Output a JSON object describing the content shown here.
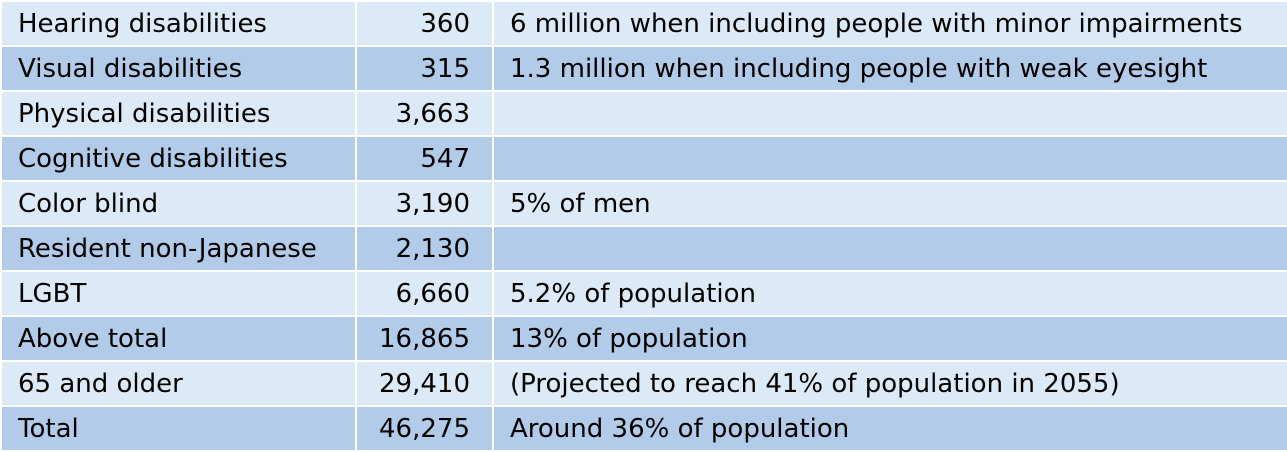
{
  "table": {
    "rows": [
      {
        "label": "Hearing disabilities",
        "value": "360",
        "note": "6 million when including people with minor impairments"
      },
      {
        "label": "Visual disabilities",
        "value": "315",
        "note": "1.3 million when including people with weak eyesight"
      },
      {
        "label": "Physical disabilities",
        "value": "3,663",
        "note": ""
      },
      {
        "label": "Cognitive disabilities",
        "value": "547",
        "note": ""
      },
      {
        "label": "Color blind",
        "value": "3,190",
        "note": "5% of men"
      },
      {
        "label": "Resident non-Japanese",
        "value": "2,130",
        "note": ""
      },
      {
        "label": "LGBT",
        "value": "6,660",
        "note": "5.2% of population"
      },
      {
        "label": "Above total",
        "value": "16,865",
        "note": "13% of population"
      },
      {
        "label": "65 and older",
        "value": "29,410",
        "note": "(Projected to reach 41% of population in 2055)"
      },
      {
        "label": "Total",
        "value": "46,275",
        "note": "Around 36% of population"
      }
    ],
    "colors": {
      "row_light": "#dce9f6",
      "row_dark": "#b2cbe8",
      "border": "#ffffff"
    }
  }
}
